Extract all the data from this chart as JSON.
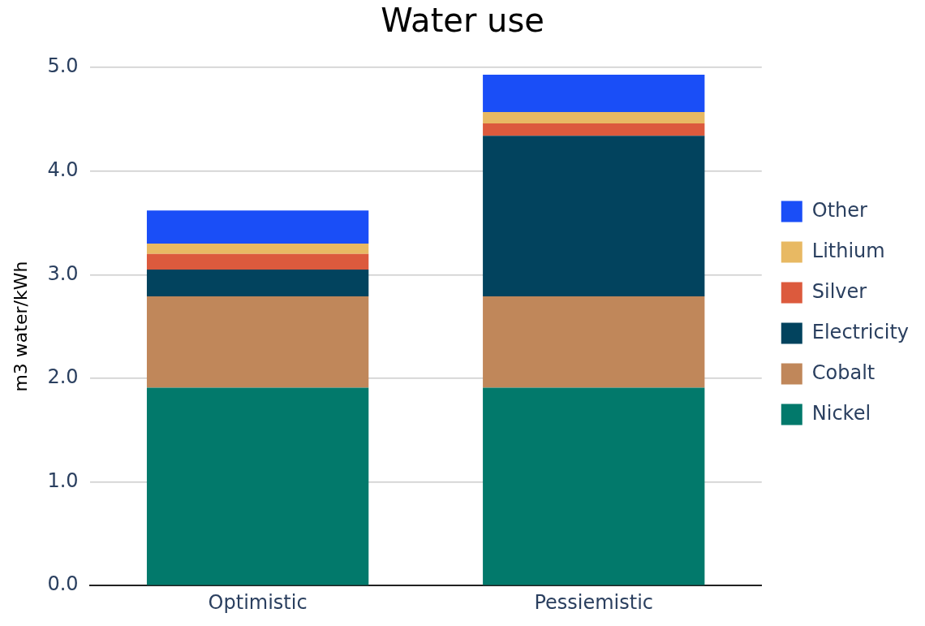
{
  "chart_data": {
    "type": "bar",
    "title": "Water use",
    "ylabel": "m3 water/kWh",
    "categories": [
      "Optimistic",
      "Pessiemistic"
    ],
    "stacked": true,
    "series": [
      {
        "name": "Nickel",
        "color": "#02796b",
        "values": [
          1.91,
          1.91
        ]
      },
      {
        "name": "Cobalt",
        "color": "#c0875a",
        "values": [
          0.88,
          0.88
        ]
      },
      {
        "name": "Electricity",
        "color": "#02435e",
        "values": [
          0.26,
          1.55
        ]
      },
      {
        "name": "Silver",
        "color": "#dc5a3d",
        "values": [
          0.15,
          0.12
        ]
      },
      {
        "name": "Lithium",
        "color": "#e8b963",
        "values": [
          0.1,
          0.11
        ]
      },
      {
        "name": "Other",
        "color": "#1a4ef7",
        "values": [
          0.32,
          0.36
        ]
      }
    ],
    "ylim": [
      0,
      5
    ],
    "yticks": [
      {
        "value": 0,
        "label": "0.0"
      },
      {
        "value": 1,
        "label": "1.0"
      },
      {
        "value": 2,
        "label": "2.0"
      },
      {
        "value": 3,
        "label": "3.0"
      },
      {
        "value": 4,
        "label": "4.0"
      },
      {
        "value": 5,
        "label": "5.0"
      }
    ],
    "grid": "y",
    "legend": "right"
  }
}
